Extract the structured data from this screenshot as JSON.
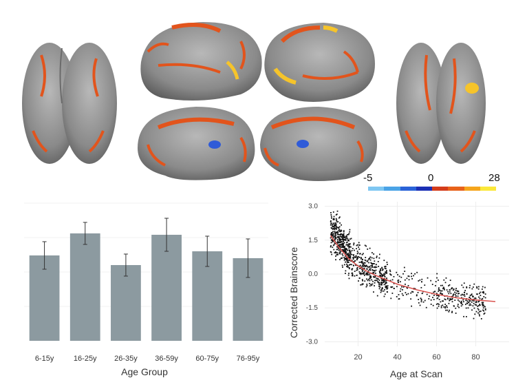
{
  "colorbar": {
    "min_label": "-5",
    "zero_label": "0",
    "max_label": "28",
    "colors": [
      "#7fc7f2",
      "#4aa3e6",
      "#2a63d8",
      "#1b2fb5",
      "#d43c1a",
      "#e8621a",
      "#f5a51c",
      "#fbe83a"
    ]
  },
  "brain_colors": {
    "cortex": "#8d8d8d",
    "positive": "#e2541c",
    "strong": "#f6c42a",
    "negative": "#2f5bd8"
  },
  "chart_data": [
    {
      "type": "bar",
      "categories": [
        "6-15y",
        "16-25y",
        "26-35y",
        "36-59y",
        "60-75y",
        "76-95y"
      ],
      "values": [
        0.62,
        0.78,
        0.55,
        0.77,
        0.65,
        0.6
      ],
      "error": [
        0.1,
        0.08,
        0.08,
        0.12,
        0.11,
        0.14
      ],
      "xlabel": "Age Group",
      "ylabel": "",
      "ylim": [
        0,
        1
      ],
      "color": "#8c9aa0",
      "grid": false
    },
    {
      "type": "scatter",
      "xlabel": "Age at Scan",
      "ylabel": "Corrected Brainscore",
      "xlim": [
        3,
        97
      ],
      "ylim": [
        -3.2,
        3.2
      ],
      "xticks": [
        20,
        40,
        60,
        80
      ],
      "yticks": [
        "3.0",
        "1.5",
        "0.0",
        "-1.5",
        "-3.0"
      ],
      "ytick_values": [
        3.0,
        1.5,
        0.0,
        -1.5,
        -3.0
      ],
      "point_color": "#111111",
      "fit_color": "#d9534f",
      "clusters": [
        {
          "x_range": [
            6,
            16
          ],
          "y_center_at_start": 1.95,
          "y_center_at_end": 0.9,
          "spread": 0.45,
          "count": 380
        },
        {
          "x_range": [
            16,
            35
          ],
          "y_center_at_start": 0.6,
          "y_center_at_end": -0.25,
          "spread": 0.4,
          "count": 360
        },
        {
          "x_range": [
            35,
            60
          ],
          "y_center_at_start": -0.3,
          "y_center_at_end": -0.9,
          "spread": 0.35,
          "count": 110
        },
        {
          "x_range": [
            60,
            85
          ],
          "y_center_at_start": -0.9,
          "y_center_at_end": -1.2,
          "spread": 0.4,
          "count": 250
        }
      ],
      "fit_curve": {
        "x": [
          6,
          10,
          15,
          20,
          25,
          30,
          40,
          50,
          60,
          70,
          80,
          90
        ],
        "y": [
          1.7,
          1.2,
          0.7,
          0.35,
          0.1,
          -0.1,
          -0.45,
          -0.7,
          -0.9,
          -1.05,
          -1.15,
          -1.22
        ]
      }
    }
  ]
}
